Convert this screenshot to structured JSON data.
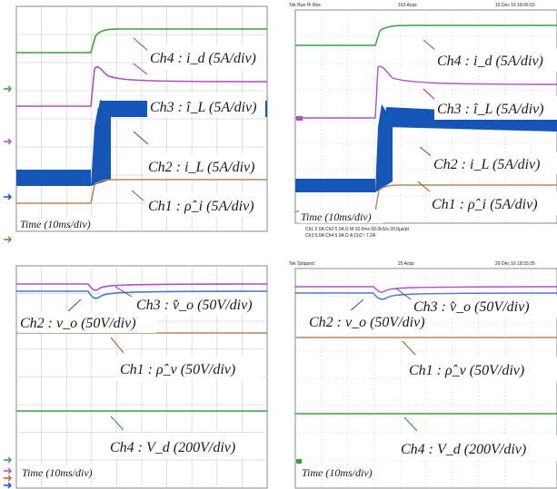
{
  "chart_data": [
    {
      "type": "line",
      "title": "",
      "xlabel": "Time (10ms/div)",
      "labels": [
        {
          "text": "Ch4 : i_d  (5A/div)",
          "color": "#2a8a2a"
        },
        {
          "text": "Ch3 : î_L  (5A/div)",
          "color": "#9a2a9a"
        },
        {
          "text": "Ch2 : i_L  (5A/div)",
          "color": "#1f4fa8"
        },
        {
          "text": "Ch1 : ρ̂_i  (5A/div)",
          "color": "#8a5a2a"
        }
      ],
      "grid": true,
      "colors": {
        "ch1": "#b5885c",
        "ch2": "#1555b5",
        "ch3": "#b050c0",
        "ch4": "#2f9a3a"
      }
    },
    {
      "type": "line",
      "title": "",
      "header": {
        "left": "Tek  Run      Hi Res",
        "mid": "163 Acqs",
        "right": "19 Dec 16 18:06:03"
      },
      "footer": {
        "row1": "Ch1  5.0A    Ch2  5.0A   Ω    M 10.0ms 50.0kS/s   20.0µs/pt",
        "row2": "Ch3  5.0A    Ch4  5.0A   Ω    A  Ch2  \\  7.2A"
      },
      "xlabel": "Time (10ms/div)",
      "labels": [
        {
          "text": "Ch4 : i_d  (5A/div)"
        },
        {
          "text": "Ch3 : î_L  (5A/div)"
        },
        {
          "text": "Ch2 : i_L  (5A/div)"
        },
        {
          "text": "Ch1 : ρ̂_i  (5A/div)"
        }
      ],
      "grid": true
    },
    {
      "type": "line",
      "title": "",
      "xlabel": "Time (10ms/div)",
      "labels": [
        {
          "text": "Ch3 : v̂_o  (50V/div)"
        },
        {
          "text": "Ch2 : v_o  (50V/div)"
        },
        {
          "text": "Ch1 : ρ̂_v  (50V/div)"
        },
        {
          "text": "Ch4 : V_d  (200V/div)"
        }
      ],
      "grid": true
    },
    {
      "type": "line",
      "title": "",
      "header": {
        "left": "Tek  Stopped",
        "mid": "29 Acqs",
        "right": "20 Dec 16 18:33:25"
      },
      "xlabel": "Time (10ms/div)",
      "labels": [
        {
          "text": "Ch3 : v̂_o  (50V/div)"
        },
        {
          "text": "Ch2 : v_o  (50V/div)"
        },
        {
          "text": "Ch1 : ρ̂_v  (50V/div)"
        },
        {
          "text": "Ch4 : V_d  (200V/div)"
        }
      ],
      "grid": true
    }
  ]
}
